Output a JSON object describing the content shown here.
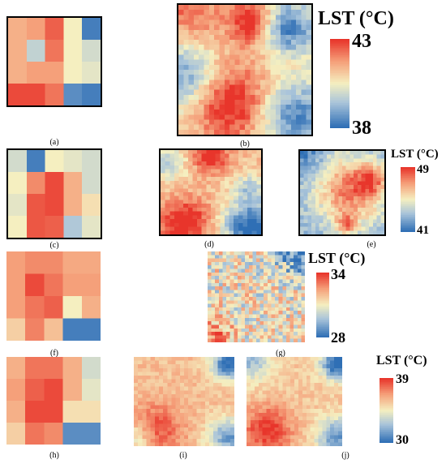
{
  "captions": {
    "a": "(a)",
    "b": "(b)",
    "c": "(c)",
    "d": "(d)",
    "e": "(e)",
    "f": "(f)",
    "g": "(g)",
    "h": "(h)",
    "i": "(i)",
    "j": "(j)"
  },
  "legends": [
    {
      "id": "row1",
      "title": "LST (°C)",
      "max": "43",
      "min": "38"
    },
    {
      "id": "row2",
      "title": "LST (°C)",
      "max": "49",
      "min": "41"
    },
    {
      "id": "row3",
      "title": "LST (°C)",
      "max": "34",
      "min": "28"
    },
    {
      "id": "row4",
      "title": "LST (°C)",
      "max": "39",
      "min": "30"
    }
  ],
  "colormap": {
    "high": "#e8352b",
    "upper": "#f5a07a",
    "mid": "#f5efc0",
    "lower": "#a9c4da",
    "low": "#2f6fb5"
  },
  "coarse_grids": {
    "a": [
      [
        0.7,
        0.75,
        0.9,
        0.5,
        0.05
      ],
      [
        0.7,
        0.35,
        0.85,
        0.5,
        0.4
      ],
      [
        0.7,
        0.75,
        0.75,
        0.5,
        0.45
      ],
      [
        0.95,
        0.95,
        0.85,
        0.1,
        0.05
      ]
    ],
    "c": [
      [
        0.4,
        0.05,
        0.5,
        0.45,
        0.4
      ],
      [
        0.5,
        0.8,
        0.95,
        0.7,
        0.4
      ],
      [
        0.45,
        0.92,
        0.95,
        0.7,
        0.55
      ],
      [
        0.5,
        0.92,
        0.9,
        0.3,
        0.45
      ]
    ],
    "f": [
      [
        0.75,
        0.8,
        0.8,
        0.72,
        0.72
      ],
      [
        0.75,
        0.95,
        0.85,
        0.75,
        0.75
      ],
      [
        0.75,
        0.85,
        0.9,
        0.5,
        0.7
      ],
      [
        0.6,
        0.82,
        0.65,
        0.05,
        0.05
      ]
    ],
    "h": [
      [
        0.7,
        0.85,
        0.85,
        0.7,
        0.4
      ],
      [
        0.75,
        0.9,
        0.95,
        0.7,
        0.45
      ],
      [
        0.7,
        0.95,
        0.95,
        0.55,
        0.55
      ],
      [
        0.6,
        0.85,
        0.8,
        0.1,
        0.1
      ]
    ]
  }
}
